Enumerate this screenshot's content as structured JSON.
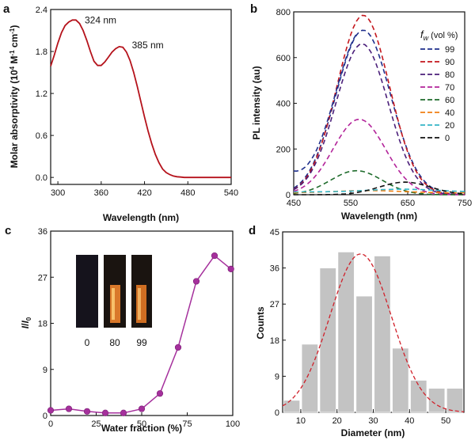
{
  "panels": {
    "a": {
      "letter": "a"
    },
    "b": {
      "letter": "b"
    },
    "c": {
      "letter": "c"
    },
    "d": {
      "letter": "d"
    }
  },
  "chart_data": [
    {
      "id": "a",
      "type": "line",
      "xlabel": "Wavelength (nm)",
      "ylabel": "Molar absorptivity (10^4 M^-1 cm^-1)",
      "xlim": [
        290,
        540
      ],
      "ylim": [
        -0.1,
        2.4
      ],
      "xticks": [
        300,
        360,
        420,
        480,
        540
      ],
      "yticks": [
        0.0,
        0.6,
        1.2,
        1.8,
        2.4
      ],
      "ytick_labels": [
        "0.0",
        "0.6",
        "1.2",
        "1.8",
        "2.4"
      ],
      "color": "#b5121b",
      "x": [
        290,
        295,
        300,
        305,
        310,
        315,
        320,
        325,
        330,
        335,
        340,
        345,
        350,
        355,
        360,
        365,
        370,
        375,
        380,
        385,
        390,
        395,
        400,
        405,
        410,
        415,
        420,
        425,
        430,
        435,
        440,
        445,
        450,
        455,
        460,
        465,
        470,
        475,
        480,
        485,
        490,
        500,
        510,
        520,
        530,
        540
      ],
      "y": [
        1.59,
        1.75,
        1.92,
        2.07,
        2.17,
        2.22,
        2.25,
        2.25,
        2.2,
        2.1,
        1.96,
        1.8,
        1.66,
        1.6,
        1.6,
        1.65,
        1.72,
        1.79,
        1.84,
        1.87,
        1.86,
        1.79,
        1.67,
        1.5,
        1.3,
        1.08,
        0.86,
        0.66,
        0.48,
        0.33,
        0.21,
        0.12,
        0.07,
        0.04,
        0.02,
        0.01,
        0.005,
        0.0,
        0.0,
        0.0,
        0.0,
        0.0,
        0.0,
        0.0,
        0.0,
        0.0
      ],
      "annotations": [
        {
          "text": "324 nm",
          "x": 324,
          "y": 2.25
        },
        {
          "text": "385 nm",
          "x": 385,
          "y": 1.87
        }
      ]
    },
    {
      "id": "b",
      "type": "line",
      "xlabel": "Wavelength (nm)",
      "ylabel": "PL intensity (au)",
      "xlim": [
        450,
        750
      ],
      "ylim": [
        0,
        800
      ],
      "xticks": [
        450,
        550,
        650,
        750
      ],
      "yticks": [
        0,
        200,
        400,
        600,
        800
      ],
      "legend_title_symbol": "f",
      "legend_title_sub": "w",
      "legend_title_rest": " (vol %)",
      "legend_position": "top-right",
      "series": [
        {
          "name": "99",
          "color": "#1f2f8c",
          "peak": 720,
          "center": 572,
          "sigma": 48,
          "base": 0
        },
        {
          "name": "90",
          "color": "#c4161c",
          "peak": 785,
          "center": 572,
          "sigma": 46,
          "base": 0
        },
        {
          "name": "80",
          "color": "#4b1f7a",
          "peak": 660,
          "center": 570,
          "sigma": 46,
          "base": 0
        },
        {
          "name": "70",
          "color": "#b3249a",
          "peak": 330,
          "center": 565,
          "sigma": 46,
          "base": 0
        },
        {
          "name": "60",
          "color": "#1e6b2b",
          "peak": 105,
          "center": 560,
          "sigma": 45,
          "base": 0
        },
        {
          "name": "40",
          "color": "#f07f12",
          "peak": 10,
          "center": 580,
          "sigma": 60,
          "base": 8
        },
        {
          "name": "20",
          "color": "#36b5c6",
          "peak": 12,
          "center": 640,
          "sigma": 60,
          "base": 12
        },
        {
          "name": "0",
          "color": "#111111",
          "peak": 55,
          "center": 645,
          "sigma": 45,
          "base": 0
        }
      ],
      "extra_curve": {
        "color": "#1f2f8c",
        "start": 75,
        "end_x": 520
      }
    },
    {
      "id": "c",
      "type": "line",
      "xlabel": "Water fraction (%)",
      "ylabel": "I/I0",
      "xlim": [
        0,
        100
      ],
      "ylim": [
        0,
        36
      ],
      "xticks": [
        0,
        25,
        50,
        75,
        100
      ],
      "yticks": [
        0,
        9,
        18,
        27,
        36
      ],
      "color": "#a5309c",
      "x": [
        0,
        10,
        20,
        30,
        40,
        50,
        60,
        70,
        80,
        90,
        99
      ],
      "y": [
        1.0,
        1.3,
        0.8,
        0.5,
        0.5,
        1.3,
        4.3,
        13.3,
        26.2,
        31.2,
        28.6
      ],
      "inset_labels": [
        "0",
        "80",
        "99"
      ]
    },
    {
      "id": "d",
      "type": "bar",
      "xlabel": "Diameter (nm)",
      "ylabel": "Counts",
      "xlim": [
        5,
        55
      ],
      "ylim": [
        0,
        45
      ],
      "xticks": [
        10,
        20,
        30,
        40,
        50
      ],
      "yticks": [
        0,
        9,
        18,
        27,
        36,
        45
      ],
      "bin_width": 4.5,
      "x": [
        7.5,
        12.5,
        17.5,
        22.5,
        27.5,
        32.5,
        37.5,
        42.5,
        47.5,
        52.5
      ],
      "values": [
        3,
        17,
        36,
        40,
        29,
        39,
        16,
        8,
        6,
        6
      ],
      "bar_color": "#c3c3c3",
      "fit": {
        "color": "#d0202a",
        "amplitude": 39.5,
        "center": 26.5,
        "sigma": 8.5
      }
    }
  ]
}
